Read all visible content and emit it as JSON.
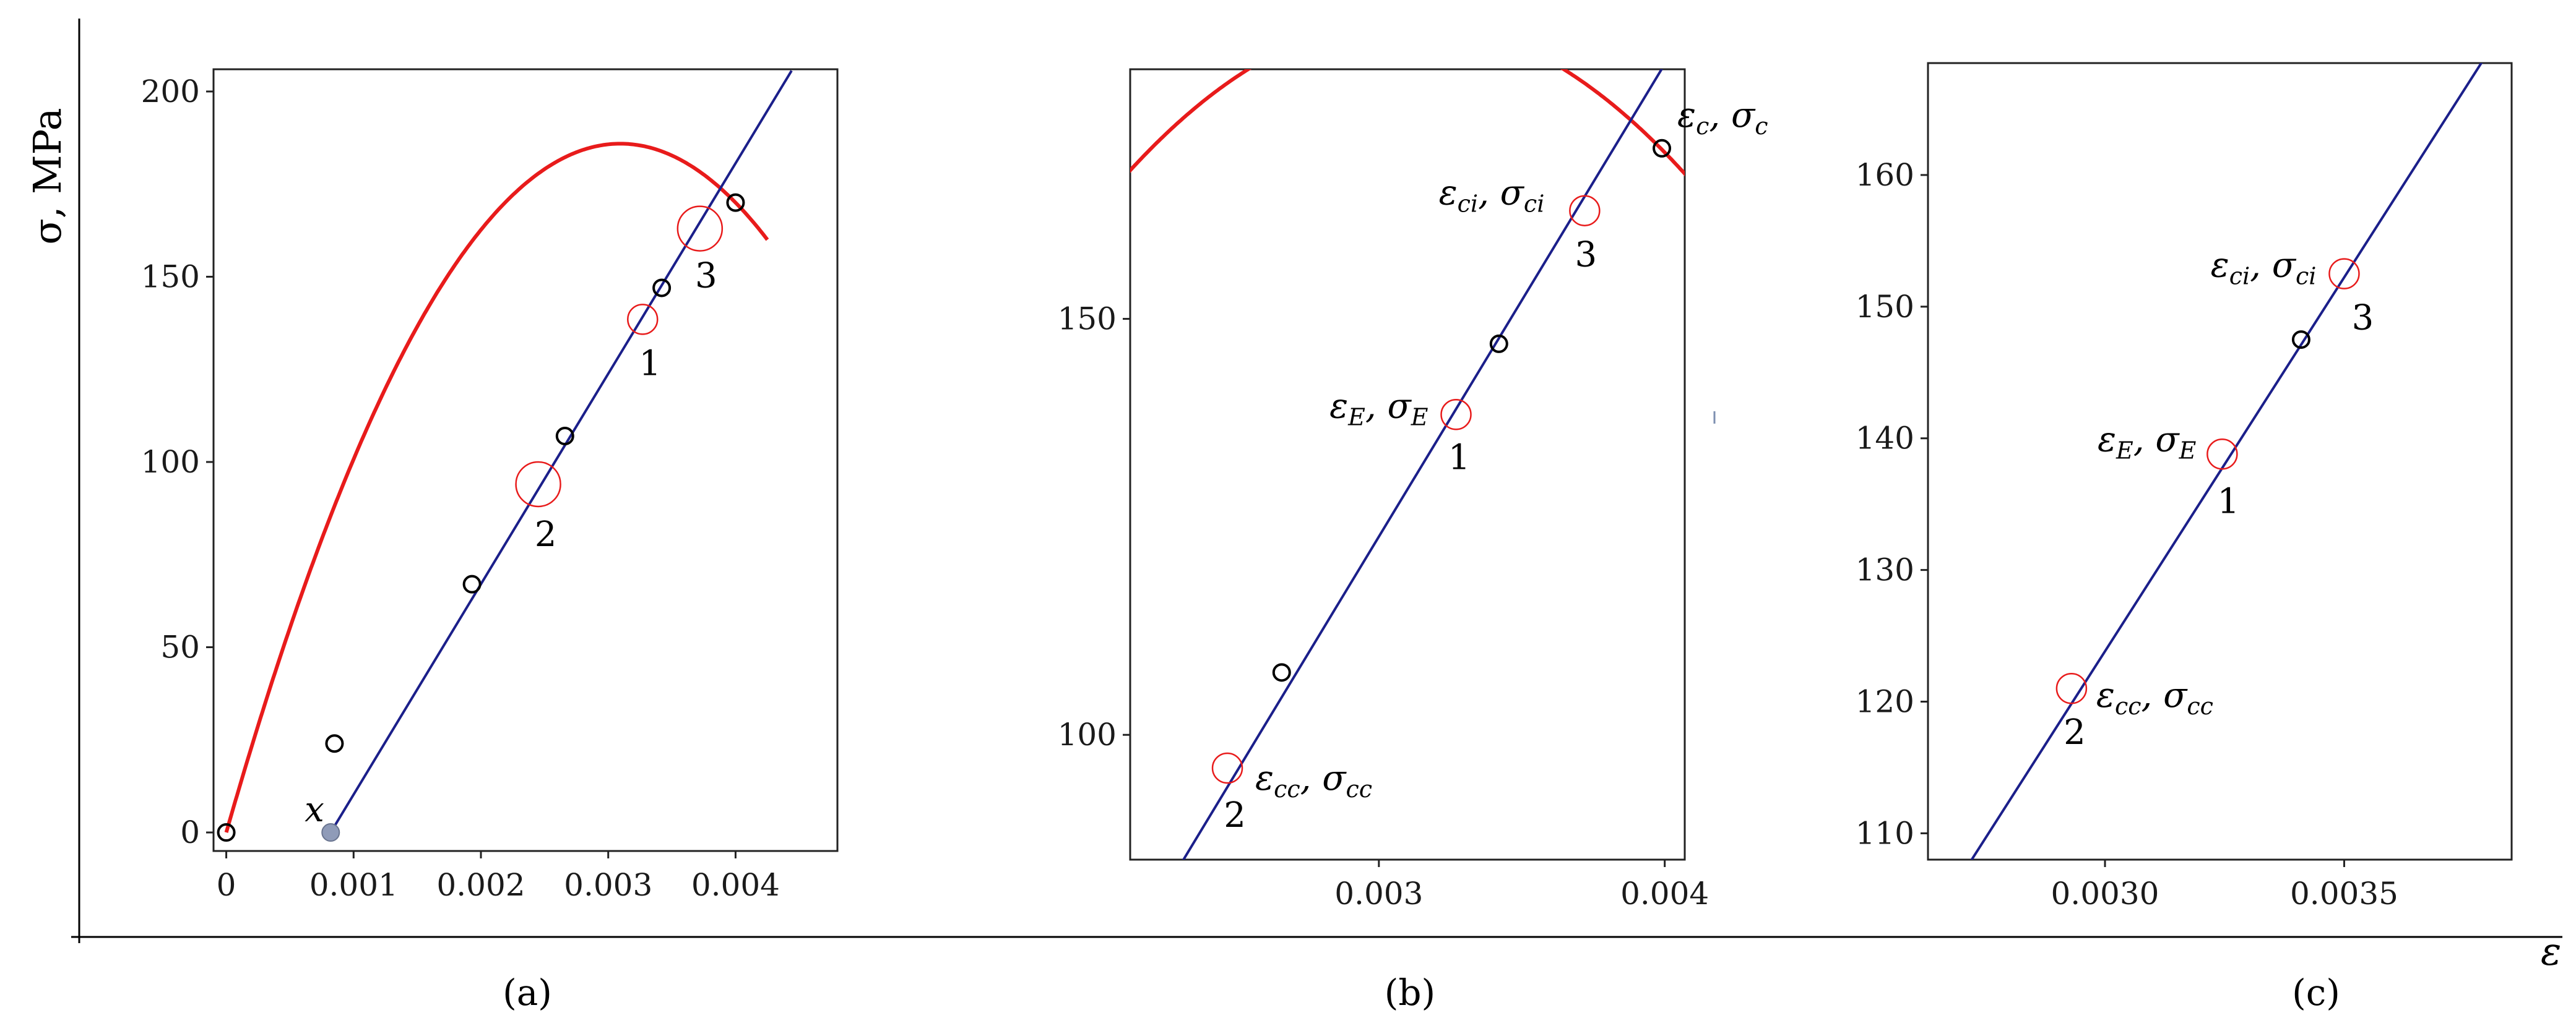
{
  "figure": {
    "ylabel": "σ, MPa",
    "xlabel": "ε",
    "colors": {
      "model": "#e81b1b",
      "tangent": "#1b1f8a",
      "points": "#000000",
      "markers": "#e81b1b",
      "x_point": "#8f9bb8"
    }
  },
  "chart_data": [
    {
      "type": "line",
      "panel_label": "(a)",
      "xlim": [
        -0.0001,
        0.0048
      ],
      "ylim": [
        -5,
        206
      ],
      "xticks": [
        0,
        0.001,
        0.002,
        0.003,
        0.004
      ],
      "xtick_labels": [
        "0",
        "0.001",
        "0.002",
        "0.003",
        "0.004"
      ],
      "yticks": [
        0,
        50,
        100,
        150,
        200
      ],
      "ytick_labels": [
        "0",
        "50",
        "100",
        "150",
        "200"
      ],
      "model_curve": {
        "e1": 0.004,
        "s1": 170,
        "e2": 0.00425,
        "s2": 160
      },
      "tangent_line": {
        "x0": 0.00082,
        "x1": 0.00444,
        "slope": 56800
      },
      "data_points": [
        [
          0,
          0
        ],
        [
          0.00085,
          24
        ],
        [
          0.00193,
          67
        ],
        [
          0.00266,
          107
        ],
        [
          0.00342,
          147
        ],
        [
          0.004,
          170
        ]
      ],
      "markers": [
        {
          "label": "1",
          "x": 0.00327,
          "y": 138.5,
          "size": 1
        },
        {
          "label": "2",
          "x": 0.00245,
          "y": 94,
          "size": 1.5
        },
        {
          "label": "3",
          "x": 0.00372,
          "y": 163,
          "size": 1.5
        }
      ],
      "x_point": {
        "label": "x",
        "x": 0.00082,
        "y": 0
      }
    },
    {
      "type": "line",
      "panel_label": "(b)",
      "xlim": [
        0.00213,
        0.00407
      ],
      "ylim": [
        85,
        180
      ],
      "xticks": [
        0.003,
        0.004
      ],
      "xtick_labels": [
        "0.003",
        "0.004"
      ],
      "yticks": [
        100,
        150
      ],
      "ytick_labels": [
        "100",
        "150"
      ],
      "markers": [
        {
          "label": "1",
          "x": 0.00327,
          "y": 138.5,
          "annotation": "εE, σE"
        },
        {
          "label": "2",
          "x": 0.00247,
          "y": 96,
          "annotation": "εcc, σcc"
        },
        {
          "label": "3",
          "x": 0.00372,
          "y": 163,
          "annotation": "εci, σci"
        }
      ],
      "peak_annotation": {
        "text": "εc, σc",
        "x": 0.00399,
        "y": 170.5
      },
      "data_points": [
        [
          0.00266,
          107.5
        ],
        [
          0.00342,
          147
        ],
        [
          0.00399,
          170.5
        ]
      ]
    },
    {
      "type": "line",
      "panel_label": "(c)",
      "xlim": [
        0.00263,
        0.00385
      ],
      "ylim": [
        108,
        168.5
      ],
      "xticks": [
        0.003,
        0.0035
      ],
      "xtick_labels": [
        "0.0030",
        "0.0035"
      ],
      "yticks": [
        110,
        120,
        130,
        140,
        150,
        160
      ],
      "ytick_labels": [
        "110",
        "120",
        "130",
        "140",
        "150",
        "160"
      ],
      "markers": [
        {
          "label": "1",
          "x": 0.003245,
          "y": 138.8,
          "annotation": "εE, σE"
        },
        {
          "label": "2",
          "x": 0.00293,
          "y": 121,
          "annotation": "εcc, σcc"
        },
        {
          "label": "3",
          "x": 0.0035,
          "y": 152.5,
          "annotation": "εci, σci"
        }
      ],
      "data_points": [
        [
          0.00341,
          147.5
        ]
      ]
    }
  ]
}
